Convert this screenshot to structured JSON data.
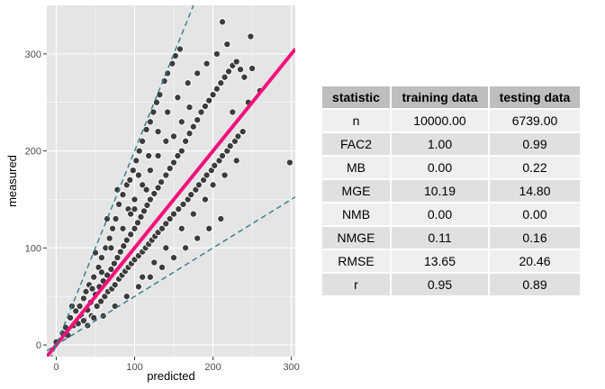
{
  "chart_data": [
    {
      "type": "scatter",
      "xlabel": "predicted",
      "ylabel": "measured",
      "xlim": [
        -12,
        305
      ],
      "ylim": [
        -12,
        350
      ],
      "x_ticks": [
        0,
        100,
        200,
        300
      ],
      "y_ticks": [
        0,
        100,
        200,
        300
      ],
      "grid": true,
      "colors": {
        "panel": "#e5e5e5",
        "grid": "#ffffff",
        "points": "#3c3c3c",
        "point_edge": "#ffffff",
        "fit_line": "#f2127c",
        "bound_lines": "#2a7f86"
      },
      "reference_lines": [
        {
          "kind": "fit",
          "intercept": 0,
          "slope": 1.0,
          "style": "solid"
        },
        {
          "kind": "upper-bound",
          "intercept": 0,
          "slope": 2.0,
          "style": "dashed"
        },
        {
          "kind": "lower-bound",
          "intercept": 0,
          "slope": 0.5,
          "style": "dashed"
        }
      ],
      "points": [
        [
          0,
          3
        ],
        [
          8,
          12
        ],
        [
          12,
          18
        ],
        [
          15,
          10
        ],
        [
          18,
          28
        ],
        [
          22,
          20
        ],
        [
          25,
          35
        ],
        [
          28,
          22
        ],
        [
          30,
          40
        ],
        [
          32,
          30
        ],
        [
          35,
          48
        ],
        [
          36,
          26
        ],
        [
          38,
          55
        ],
        [
          40,
          36
        ],
        [
          42,
          62
        ],
        [
          44,
          44
        ],
        [
          45,
          30
        ],
        [
          48,
          70
        ],
        [
          50,
          52
        ],
        [
          52,
          40
        ],
        [
          54,
          80
        ],
        [
          55,
          60
        ],
        [
          57,
          45
        ],
        [
          58,
          90
        ],
        [
          60,
          66
        ],
        [
          62,
          50
        ],
        [
          63,
          100
        ],
        [
          65,
          72
        ],
        [
          66,
          55
        ],
        [
          68,
          110
        ],
        [
          70,
          78
        ],
        [
          71,
          58
        ],
        [
          72,
          120
        ],
        [
          74,
          84
        ],
        [
          75,
          62
        ],
        [
          76,
          130
        ],
        [
          78,
          90
        ],
        [
          80,
          68
        ],
        [
          80,
          145
        ],
        [
          82,
          96
        ],
        [
          84,
          72
        ],
        [
          85,
          155
        ],
        [
          86,
          102
        ],
        [
          88,
          76
        ],
        [
          90,
          165
        ],
        [
          90,
          108
        ],
        [
          92,
          80
        ],
        [
          94,
          170
        ],
        [
          95,
          114
        ],
        [
          96,
          84
        ],
        [
          98,
          180
        ],
        [
          100,
          120
        ],
        [
          100,
          88
        ],
        [
          102,
          190
        ],
        [
          104,
          126
        ],
        [
          105,
          92
        ],
        [
          106,
          200
        ],
        [
          108,
          132
        ],
        [
          110,
          96
        ],
        [
          110,
          210
        ],
        [
          112,
          138
        ],
        [
          114,
          100
        ],
        [
          115,
          222
        ],
        [
          116,
          144
        ],
        [
          118,
          104
        ],
        [
          120,
          230
        ],
        [
          120,
          150
        ],
        [
          122,
          108
        ],
        [
          124,
          240
        ],
        [
          125,
          156
        ],
        [
          126,
          112
        ],
        [
          128,
          250
        ],
        [
          130,
          162
        ],
        [
          130,
          116
        ],
        [
          132,
          258
        ],
        [
          134,
          168
        ],
        [
          135,
          120
        ],
        [
          138,
          272
        ],
        [
          140,
          175
        ],
        [
          140,
          125
        ],
        [
          142,
          280
        ],
        [
          145,
          182
        ],
        [
          145,
          130
        ],
        [
          148,
          290
        ],
        [
          150,
          188
        ],
        [
          150,
          135
        ],
        [
          152,
          298
        ],
        [
          155,
          195
        ],
        [
          156,
          140
        ],
        [
          158,
          305
        ],
        [
          160,
          200
        ],
        [
          162,
          145
        ],
        [
          165,
          210
        ],
        [
          168,
          150
        ],
        [
          170,
          218
        ],
        [
          172,
          155
        ],
        [
          175,
          225
        ],
        [
          178,
          160
        ],
        [
          180,
          232
        ],
        [
          182,
          165
        ],
        [
          185,
          240
        ],
        [
          188,
          170
        ],
        [
          190,
          246
        ],
        [
          192,
          175
        ],
        [
          195,
          252
        ],
        [
          198,
          180
        ],
        [
          200,
          258
        ],
        [
          202,
          185
        ],
        [
          205,
          264
        ],
        [
          208,
          190
        ],
        [
          210,
          270
        ],
        [
          212,
          195
        ],
        [
          215,
          276
        ],
        [
          218,
          200
        ],
        [
          220,
          282
        ],
        [
          222,
          205
        ],
        [
          225,
          288
        ],
        [
          228,
          210
        ],
        [
          230,
          292
        ],
        [
          232,
          215
        ],
        [
          235,
          284
        ],
        [
          238,
          220
        ],
        [
          240,
          276
        ],
        [
          245,
          250
        ],
        [
          250,
          285
        ],
        [
          260,
          262
        ],
        [
          298,
          188
        ],
        [
          212,
          333
        ],
        [
          248,
          318
        ],
        [
          20,
          40
        ],
        [
          35,
          25
        ],
        [
          50,
          95
        ],
        [
          65,
          130
        ],
        [
          78,
          160
        ],
        [
          92,
          140
        ],
        [
          105,
          175
        ],
        [
          118,
          195
        ],
        [
          130,
          220
        ],
        [
          142,
          240
        ],
        [
          155,
          255
        ],
        [
          168,
          270
        ],
        [
          180,
          280
        ],
        [
          192,
          290
        ],
        [
          205,
          300
        ],
        [
          218,
          310
        ],
        [
          225,
          240
        ],
        [
          60,
          30
        ],
        [
          75,
          40
        ],
        [
          90,
          50
        ],
        [
          105,
          60
        ],
        [
          120,
          70
        ],
        [
          135,
          80
        ],
        [
          150,
          90
        ],
        [
          165,
          100
        ],
        [
          180,
          110
        ],
        [
          195,
          120
        ],
        [
          210,
          130
        ],
        [
          100,
          150
        ],
        [
          110,
          165
        ],
        [
          120,
          180
        ],
        [
          85,
          120
        ],
        [
          95,
          135
        ],
        [
          70,
          100
        ],
        [
          58,
          75
        ],
        [
          46,
          58
        ],
        [
          40,
          20
        ],
        [
          48,
          28
        ],
        [
          110,
          70
        ],
        [
          125,
          85
        ],
        [
          140,
          100
        ],
        [
          160,
          120
        ],
        [
          175,
          135
        ],
        [
          190,
          150
        ],
        [
          200,
          165
        ],
        [
          215,
          175
        ],
        [
          230,
          190
        ],
        [
          150,
          215
        ],
        [
          160,
          230
        ],
        [
          170,
          245
        ],
        [
          140,
          210
        ],
        [
          130,
          195
        ],
        [
          115,
          160
        ],
        [
          100,
          140
        ]
      ]
    },
    {
      "type": "table",
      "columns": [
        "statistic",
        "training data",
        "testing data"
      ],
      "rows": [
        [
          "n",
          "10000.00",
          "6739.00"
        ],
        [
          "FAC2",
          "1.00",
          "0.99"
        ],
        [
          "MB",
          "0.00",
          "0.22"
        ],
        [
          "MGE",
          "10.19",
          "14.80"
        ],
        [
          "NMB",
          "0.00",
          "0.00"
        ],
        [
          "NMGE",
          "0.11",
          "0.16"
        ],
        [
          "RMSE",
          "13.65",
          "20.46"
        ],
        [
          "r",
          "0.95",
          "0.89"
        ]
      ]
    }
  ]
}
